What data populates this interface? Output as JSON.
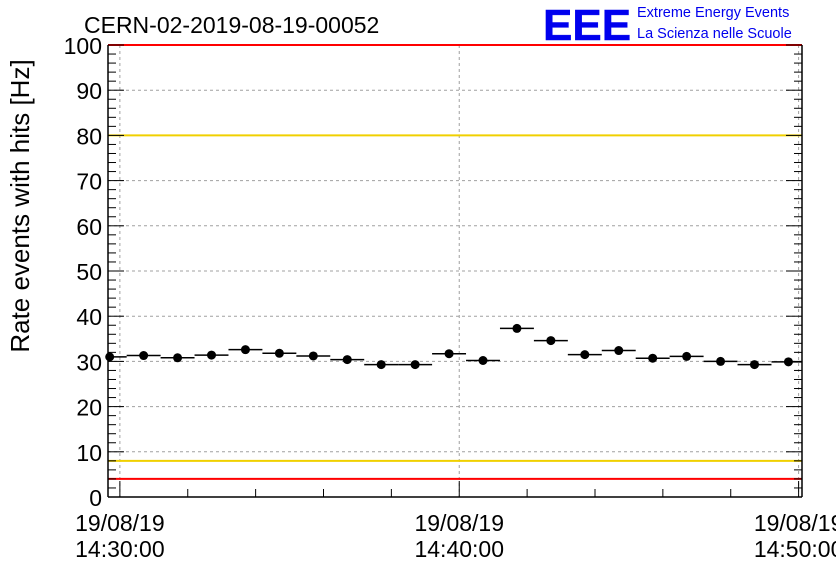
{
  "header": {
    "run_id": "CERN-02-2019-08-19-00052"
  },
  "logo": {
    "mark": "EEE",
    "line1": "Extreme Energy Events",
    "line2": "La Scienza nelle Scuole"
  },
  "chart_data": {
    "type": "scatter",
    "title": "CERN-02-2019-08-19-00052",
    "ylabel": "Rate events with hits [Hz]",
    "xlabel": "",
    "ylim": [
      0,
      100
    ],
    "x_range_minutes": [
      -0.35,
      20.1
    ],
    "x_axis_origin": "19/08/19 14:30:00",
    "yticks": [
      0,
      10,
      20,
      30,
      40,
      50,
      60,
      70,
      80,
      90,
      100
    ],
    "ytick_labels": [
      "0",
      "10",
      "20",
      "30",
      "40",
      "50",
      "60",
      "70",
      "80",
      "90",
      "100"
    ],
    "xticks": [
      {
        "minutes": 0,
        "date": "19/08/19",
        "time": "14:30:00"
      },
      {
        "minutes": 10,
        "date": "19/08/19",
        "time": "14:40:00"
      },
      {
        "minutes": 20,
        "date": "19/08/19",
        "time": "14:50:00"
      }
    ],
    "grid": true,
    "reference_lines": [
      {
        "y": 100,
        "color": "#ff0000"
      },
      {
        "y": 80,
        "color": "#f0d000"
      },
      {
        "y": 8,
        "color": "#f0d000"
      },
      {
        "y": 4,
        "color": "#ff0000"
      }
    ],
    "bin_width_minutes": 1,
    "series": [
      {
        "marker_color": "#000000",
        "x_minutes": [
          -0.3,
          0.7,
          1.7,
          2.7,
          3.7,
          4.7,
          5.7,
          6.7,
          7.7,
          8.7,
          9.7,
          10.7,
          11.7,
          12.7,
          13.7,
          14.7,
          15.7,
          16.7,
          17.7,
          18.7,
          19.7
        ],
        "values": [
          31.0,
          31.3,
          30.8,
          31.4,
          32.6,
          31.8,
          31.2,
          30.4,
          29.3,
          29.3,
          31.7,
          30.2,
          37.3,
          34.6,
          31.5,
          32.4,
          30.7,
          31.1,
          30.0,
          29.3,
          29.9
        ]
      }
    ]
  }
}
